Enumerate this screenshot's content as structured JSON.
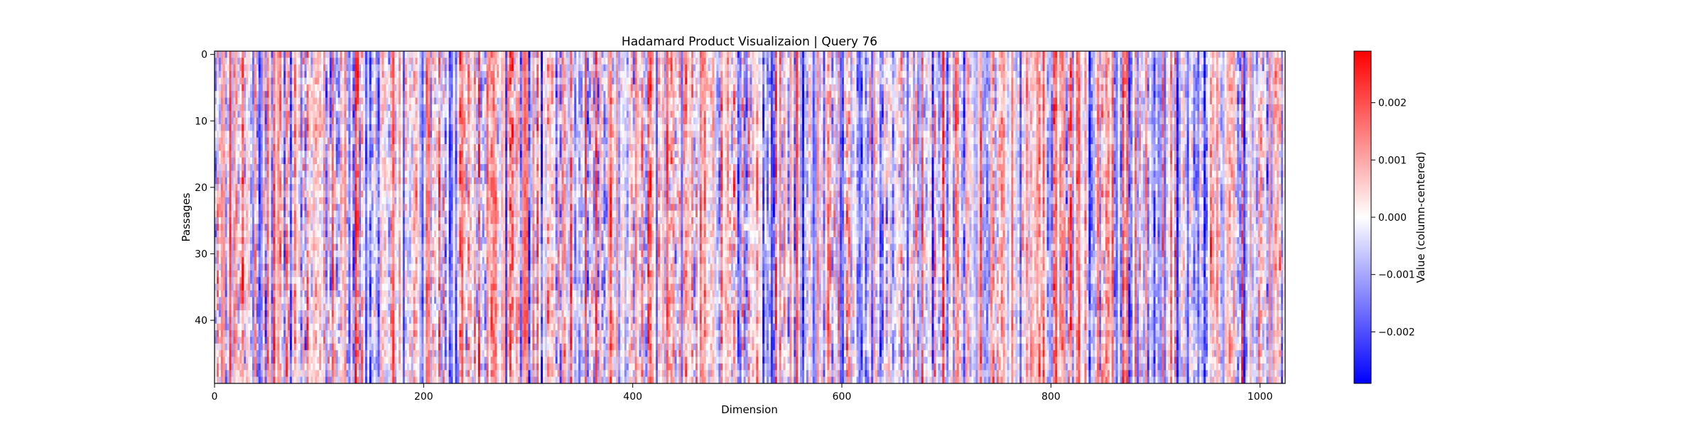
{
  "chart_data": {
    "type": "heatmap",
    "title": "Hadamard Product Visualizaion | Query 76",
    "xlabel": "Dimension",
    "ylabel": "Passages",
    "colorbar_label": "Value (column-centered)",
    "colormap": "bwr",
    "colormap_colors": [
      "#0000ff",
      "#ffffff",
      "#ff0000"
    ],
    "n_rows": 50,
    "n_cols": 1024,
    "xlim": [
      0,
      1024
    ],
    "ylim": [
      0,
      50
    ],
    "y_inverted": true,
    "clim": [
      -0.0029,
      0.0029
    ],
    "x_ticks": [
      {
        "value": 0,
        "label": "0"
      },
      {
        "value": 200,
        "label": "200"
      },
      {
        "value": 400,
        "label": "400"
      },
      {
        "value": 600,
        "label": "600"
      },
      {
        "value": 800,
        "label": "800"
      },
      {
        "value": 1000,
        "label": "1000"
      }
    ],
    "y_ticks": [
      {
        "value": 0,
        "label": "0"
      },
      {
        "value": 10,
        "label": "10"
      },
      {
        "value": 20,
        "label": "20"
      },
      {
        "value": 30,
        "label": "30"
      },
      {
        "value": 40,
        "label": "40"
      }
    ],
    "colorbar_ticks": [
      {
        "value": 0.002,
        "label": "0.002"
      },
      {
        "value": 0.001,
        "label": "0.001"
      },
      {
        "value": 0.0,
        "label": "0.000"
      },
      {
        "value": -0.001,
        "label": "−0.001"
      },
      {
        "value": -0.002,
        "label": "−0.002"
      }
    ],
    "values_note": "",
    "grid": false
  }
}
